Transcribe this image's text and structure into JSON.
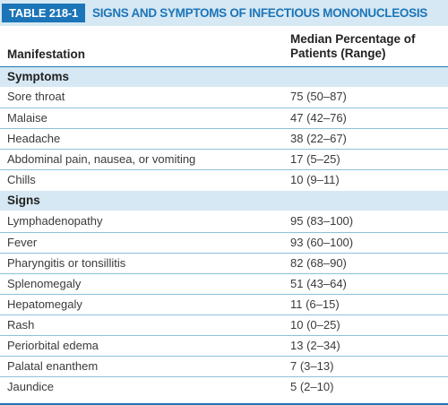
{
  "table": {
    "number": "TABLE 218-1",
    "title": "SIGNS AND SYMPTOMS OF INFECTIOUS MONONUCLEOSIS",
    "col_manifestation": "Manifestation",
    "col_median_line1": "Median Percentage of",
    "col_median_line2": "Patients (Range)",
    "sections": [
      {
        "label": "Symptoms",
        "rows": [
          {
            "name": "Sore throat",
            "value": "75 (50–87)"
          },
          {
            "name": "Malaise",
            "value": "47 (42–76)"
          },
          {
            "name": "Headache",
            "value": "38 (22–67)"
          },
          {
            "name": "Abdominal pain, nausea, or vomiting",
            "value": "17 (5–25)"
          },
          {
            "name": "Chills",
            "value": "10 (9–11)"
          }
        ]
      },
      {
        "label": "Signs",
        "rows": [
          {
            "name": "Lymphadenopathy",
            "value": "95 (83–100)"
          },
          {
            "name": "Fever",
            "value": "93 (60–100)"
          },
          {
            "name": "Pharyngitis or tonsillitis",
            "value": "82 (68–90)"
          },
          {
            "name": "Splenomegaly",
            "value": "51 (43–64)"
          },
          {
            "name": "Hepatomegaly",
            "value": "11 (6–15)"
          },
          {
            "name": "Rash",
            "value": "10 (0–25)"
          },
          {
            "name": "Periorbital edema",
            "value": "13 (2–34)"
          },
          {
            "name": "Palatal enanthem",
            "value": "7 (3–13)"
          },
          {
            "name": "Jaundice",
            "value": "5 (2–10)"
          }
        ]
      }
    ],
    "colors": {
      "accent": "#1b75b8",
      "band": "#d6e8f3",
      "rule": "#8fbfdc"
    }
  }
}
